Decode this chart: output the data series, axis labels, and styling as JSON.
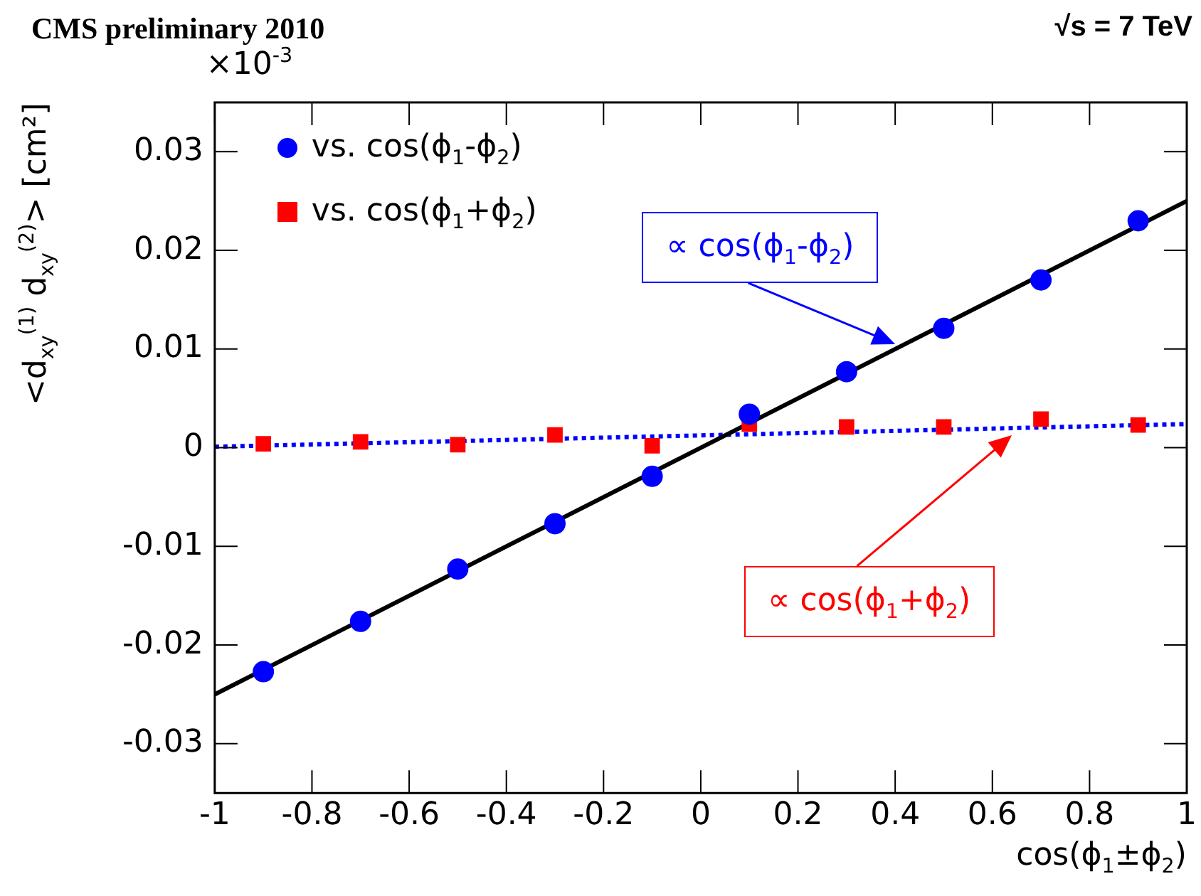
{
  "chart_data": {
    "type": "scatter",
    "title": "CMS preliminary 2010",
    "subtitle": "√s = 7 TeV",
    "xlabel": "cos(ϕ$_{1}$±ϕ$_{2}$)",
    "ylabel": "<d$_{xy}$$^{(1)}$ d$_{xy}$$^{(2)}$> [cm²]",
    "xlim": [
      -1,
      1
    ],
    "xticks": [
      -1,
      -0.8,
      -0.6,
      -0.4,
      -0.2,
      0,
      0.2,
      0.4,
      0.6,
      0.8,
      1
    ],
    "ylim": [
      -0.035,
      0.035
    ],
    "yticks": [
      -0.03,
      -0.02,
      -0.01,
      0,
      0.01,
      0.02,
      0.03
    ],
    "grid": false,
    "legend": "top left",
    "series": [
      {
        "name": "vs. cos(ϕ$_{1}$-ϕ$_{2}$)",
        "marker": "circle",
        "color": "#0000ff",
        "x": [
          -0.9,
          -0.7,
          -0.5,
          -0.3,
          -0.1,
          0.1,
          0.3,
          0.5,
          0.7,
          0.9
        ],
        "values": [
          -0.0227,
          -0.0176,
          -0.0123,
          -0.0077,
          -0.0029,
          0.0034,
          0.0077,
          0.0121,
          0.017,
          0.023
        ]
      },
      {
        "name": "vs. cos(ϕ$_{1}$+ϕ$_{2}$)",
        "marker": "square",
        "color": "#ff0000",
        "x": [
          -0.9,
          -0.7,
          -0.5,
          -0.3,
          -0.1,
          0.1,
          0.3,
          0.5,
          0.7,
          0.9
        ],
        "values": [
          0.0004,
          0.0006,
          0.0003,
          0.0013,
          0.0002,
          0.0024,
          0.0021,
          0.0021,
          0.0029,
          0.0023
        ]
      },
      {
        "type": "line",
        "marker": "none",
        "line_style": "solid",
        "color": "#000000",
        "x": [
          -1,
          1
        ],
        "values": [
          -0.025,
          0.025
        ]
      },
      {
        "type": "line",
        "marker": "none",
        "line_style": "dotted",
        "color": "#0000ff",
        "x": [
          -1,
          1
        ],
        "values": [
          0.0001,
          0.0024
        ]
      }
    ],
    "annotations": [
      {
        "text": "∝ cos(ϕ$_{1}$-ϕ$_{2}$)",
        "x": 0.4,
        "y": 0.0105
      },
      "∝ cos(ϕ$_{1}$+ϕ$_{2}$)",
      "×10$^{-3}$"
    ]
  }
}
